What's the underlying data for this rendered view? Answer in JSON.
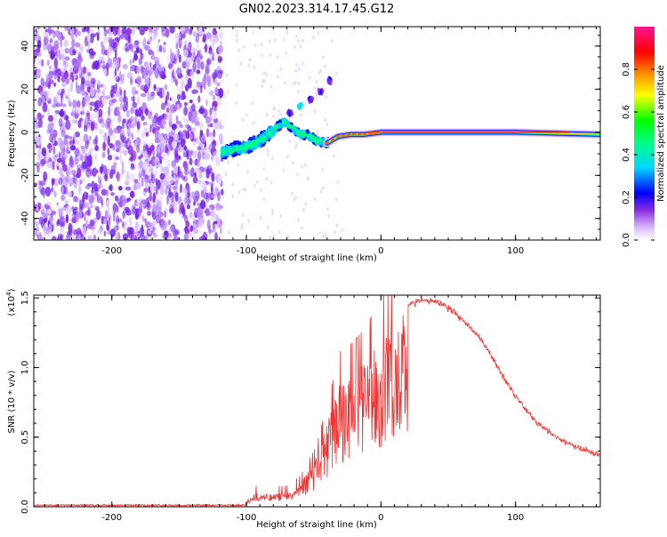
{
  "title": "GN02.2023.314.17.45.G12",
  "chart_data": [
    {
      "type": "heatmap",
      "xlabel": "Height of straight line (km)",
      "ylabel": "Frequency (Hz)",
      "xlim": [
        -258,
        163
      ],
      "ylim": [
        -50,
        49
      ],
      "xticks": [
        -200,
        -100,
        0,
        100
      ],
      "yticks": [
        -40,
        -20,
        0,
        20,
        40
      ],
      "noise_region_x": [
        -258,
        -118
      ],
      "signal_trace": [
        {
          "x": -118,
          "y": -9
        },
        {
          "x": -110,
          "y": -8
        },
        {
          "x": -100,
          "y": -7
        },
        {
          "x": -90,
          "y": -4
        },
        {
          "x": -80,
          "y": 1
        },
        {
          "x": -72,
          "y": 5
        },
        {
          "x": -66,
          "y": 2
        },
        {
          "x": -60,
          "y": -1
        },
        {
          "x": -55,
          "y": -1
        },
        {
          "x": -48,
          "y": -4
        },
        {
          "x": -40,
          "y": -5
        },
        {
          "x": -32,
          "y": -2
        },
        {
          "x": -22,
          "y": -1
        },
        {
          "x": -12,
          "y": -1
        },
        {
          "x": 0,
          "y": 0
        },
        {
          "x": 50,
          "y": 0
        },
        {
          "x": 100,
          "y": 0
        },
        {
          "x": 163,
          "y": -1
        }
      ],
      "secondary_branch": [
        {
          "x": -68,
          "y": 9
        },
        {
          "x": -60,
          "y": 12
        },
        {
          "x": -52,
          "y": 15
        },
        {
          "x": -45,
          "y": 19
        },
        {
          "x": -38,
          "y": 24
        }
      ],
      "colorbar": {
        "label": "Normalized spectral amplitude",
        "range": [
          0,
          1
        ],
        "ticks": [
          "0.0",
          "0.2",
          "0.4",
          "0.6",
          "0.8"
        ],
        "colors": [
          "#ffffff",
          "#8a2be2",
          "#0000ff",
          "#00ffff",
          "#00ff00",
          "#ffff00",
          "#ff7f00",
          "#ff0000",
          "#ff1493"
        ]
      }
    },
    {
      "type": "line",
      "xlabel": "Height of straight line (km)",
      "ylabel": "SNR (10 * v/v)",
      "yscale_label": "(x10",
      "yscale_exp": "4",
      "yscale_close": ")",
      "xlim": [
        -258,
        163
      ],
      "ylim": [
        0,
        1.52
      ],
      "xticks": [
        -200,
        -100,
        0,
        100
      ],
      "yticks": [
        "0.0",
        "0.5",
        "1.0",
        "1.5"
      ],
      "line_color": "#ee3333",
      "envelope": [
        {
          "x": -258,
          "y": 0.0
        },
        {
          "x": -110,
          "y": 0.0
        },
        {
          "x": -100,
          "y": 0.02
        },
        {
          "x": -95,
          "y": 0.12
        },
        {
          "x": -85,
          "y": 0.12
        },
        {
          "x": -70,
          "y": 0.12
        },
        {
          "x": -60,
          "y": 0.18
        },
        {
          "x": -48,
          "y": 0.35
        },
        {
          "x": -40,
          "y": 0.6
        },
        {
          "x": -30,
          "y": 0.9
        },
        {
          "x": -20,
          "y": 0.95
        },
        {
          "x": -10,
          "y": 1.05
        },
        {
          "x": 0,
          "y": 1.22
        },
        {
          "x": 10,
          "y": 1.35
        },
        {
          "x": 20,
          "y": 1.45
        },
        {
          "x": 30,
          "y": 1.48
        },
        {
          "x": 40,
          "y": 1.48
        },
        {
          "x": 50,
          "y": 1.43
        },
        {
          "x": 60,
          "y": 1.35
        },
        {
          "x": 70,
          "y": 1.25
        },
        {
          "x": 80,
          "y": 1.12
        },
        {
          "x": 90,
          "y": 0.95
        },
        {
          "x": 100,
          "y": 0.8
        },
        {
          "x": 110,
          "y": 0.67
        },
        {
          "x": 120,
          "y": 0.57
        },
        {
          "x": 130,
          "y": 0.5
        },
        {
          "x": 140,
          "y": 0.45
        },
        {
          "x": 150,
          "y": 0.41
        },
        {
          "x": 163,
          "y": 0.37
        }
      ]
    }
  ]
}
